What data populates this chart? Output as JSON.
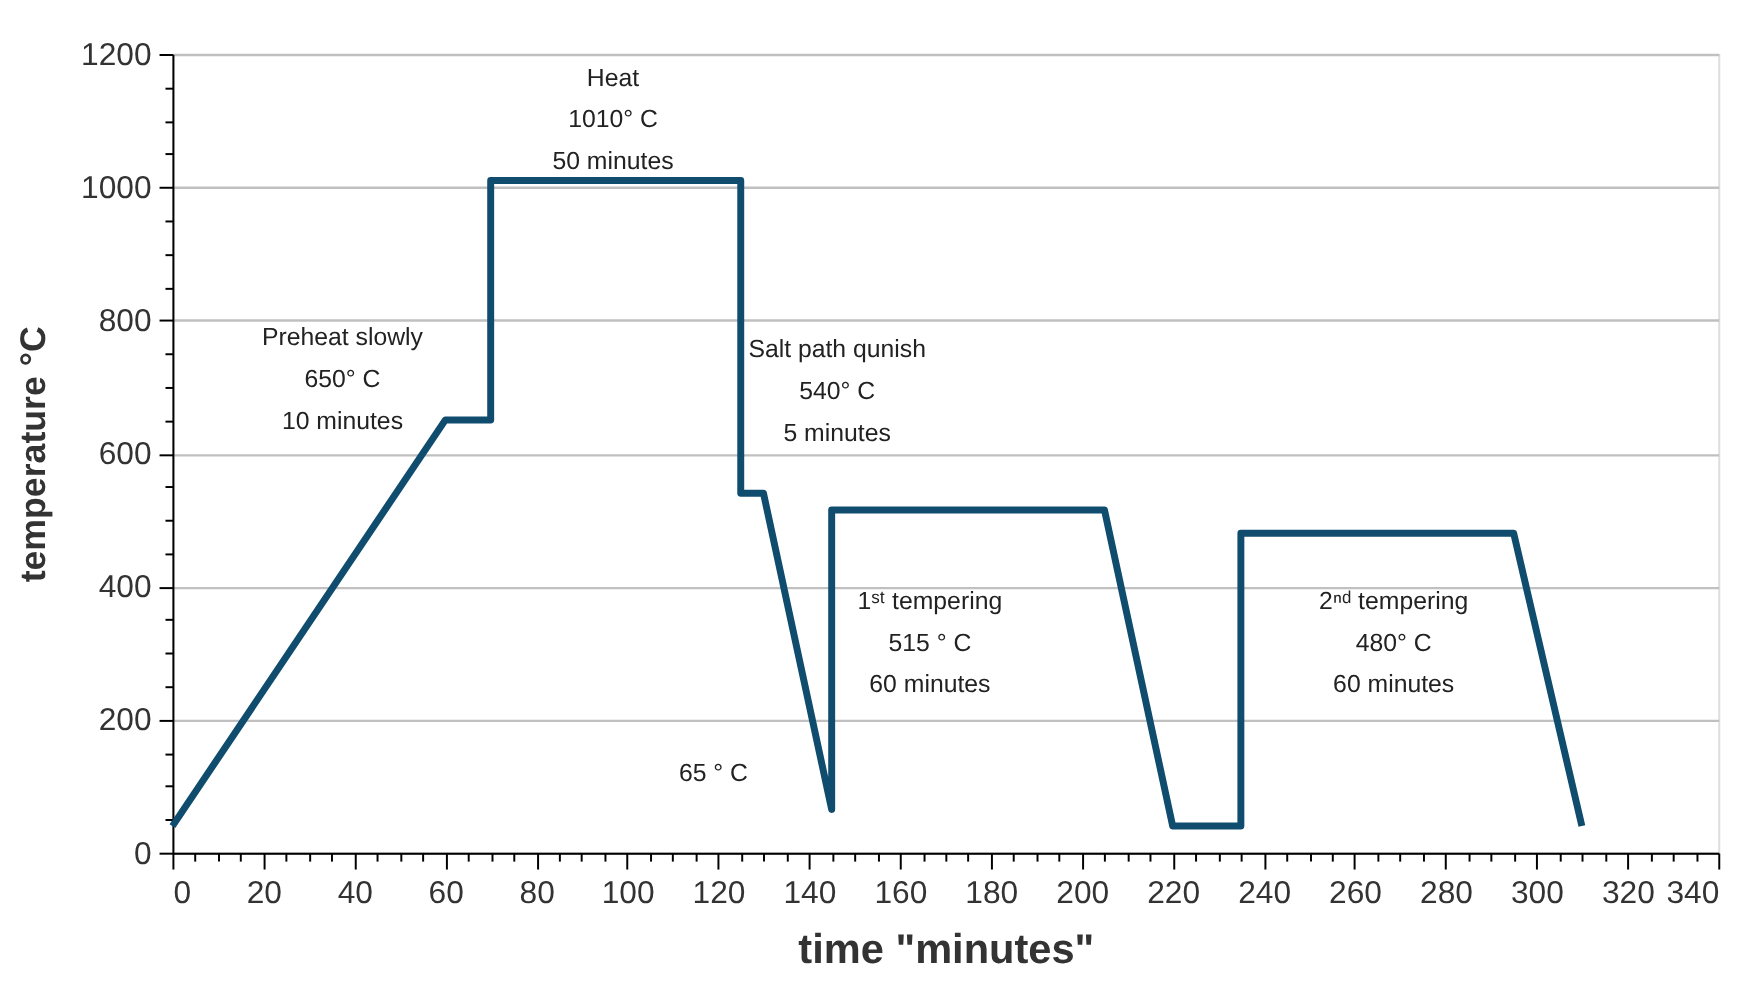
{
  "chart_data": {
    "type": "line",
    "xlabel": "time \"minutes\"",
    "ylabel": "temperature °C",
    "x": [
      0,
      60,
      70,
      70,
      125,
      125,
      130,
      145,
      145,
      205,
      220,
      235,
      235,
      295,
      310
    ],
    "series": [
      {
        "color": "#0f4c6e",
        "values": [
          40,
          650,
          650,
          1010,
          1010,
          540,
          540,
          65,
          515,
          515,
          40,
          40,
          480,
          480,
          40
        ]
      }
    ],
    "xlim": [
      0,
      340
    ],
    "xticks": [
      0,
      {
        "value": 5,
        "label": null
      },
      {
        "value": 10,
        "label": null
      },
      {
        "value": 15,
        "label": null
      },
      20,
      {
        "value": 25,
        "label": null
      },
      {
        "value": 30,
        "label": null
      },
      {
        "value": 35,
        "label": null
      },
      40,
      {
        "value": 45,
        "label": null
      },
      {
        "value": 50,
        "label": null
      },
      {
        "value": 55,
        "label": null
      },
      60,
      {
        "value": 65,
        "label": null
      },
      {
        "value": 70,
        "label": null
      },
      {
        "value": 75,
        "label": null
      },
      80,
      {
        "value": 85,
        "label": null
      },
      {
        "value": 90,
        "label": null
      },
      {
        "value": 95,
        "label": null
      },
      100,
      {
        "value": 105,
        "label": null
      },
      {
        "value": 110,
        "label": null
      },
      {
        "value": 115,
        "label": null
      },
      120,
      {
        "value": 125,
        "label": null
      },
      {
        "value": 130,
        "label": null
      },
      {
        "value": 135,
        "label": null
      },
      140,
      {
        "value": 145,
        "label": null
      },
      {
        "value": 150,
        "label": null
      },
      {
        "value": 155,
        "label": null
      },
      160,
      {
        "value": 165,
        "label": null
      },
      {
        "value": 170,
        "label": null
      },
      {
        "value": 175,
        "label": null
      },
      180,
      {
        "value": 185,
        "label": null
      },
      {
        "value": 190,
        "label": null
      },
      {
        "value": 195,
        "label": null
      },
      200,
      {
        "value": 205,
        "label": null
      },
      {
        "value": 210,
        "label": null
      },
      {
        "value": 215,
        "label": null
      },
      220,
      {
        "value": 225,
        "label": null
      },
      {
        "value": 230,
        "label": null
      },
      {
        "value": 235,
        "label": null
      },
      240,
      {
        "value": 245,
        "label": null
      },
      {
        "value": 250,
        "label": null
      },
      {
        "value": 255,
        "label": null
      },
      260,
      {
        "value": 265,
        "label": null
      },
      {
        "value": 270,
        "label": null
      },
      {
        "value": 275,
        "label": null
      },
      280,
      {
        "value": 285,
        "label": null
      },
      {
        "value": 290,
        "label": null
      },
      {
        "value": 295,
        "label": null
      },
      300,
      {
        "value": 305,
        "label": null
      },
      {
        "value": 310,
        "label": null
      },
      {
        "value": 315,
        "label": null
      },
      320,
      {
        "value": 325,
        "label": null
      },
      {
        "value": 330,
        "label": null
      },
      {
        "value": 335,
        "label": null
      },
      340
    ],
    "ylim": [
      0,
      1200
    ],
    "yticks": [
      0,
      {
        "value": 50,
        "label": null
      },
      {
        "value": 100,
        "label": null
      },
      {
        "value": 150,
        "label": null
      },
      200,
      {
        "value": 250,
        "label": null
      },
      {
        "value": 300,
        "label": null
      },
      {
        "value": 350,
        "label": null
      },
      400,
      {
        "value": 450,
        "label": null
      },
      {
        "value": 500,
        "label": null
      },
      {
        "value": 550,
        "label": null
      },
      600,
      {
        "value": 650,
        "label": null
      },
      {
        "value": 700,
        "label": null
      },
      {
        "value": 750,
        "label": null
      },
      800,
      {
        "value": 850,
        "label": null
      },
      {
        "value": 900,
        "label": null
      },
      {
        "value": 950,
        "label": null
      },
      1000,
      {
        "value": 1050,
        "label": null
      },
      {
        "value": 1100,
        "label": null
      },
      {
        "value": 1150,
        "label": null
      },
      1200
    ],
    "grid": "y",
    "marker": "none",
    "line_style": "solid",
    "annotations": [
      "Heat\n1010° C\n50 minutes",
      "Preheat slowly\n650° C\n10 minutes",
      "Salt path qunish\n540° C\n5 minutes",
      "65 ° C",
      "1ˢᵗ tempering\n515 ° C\n60 minutes",
      "2ⁿᵈ tempering\n480° C\n60 minutes"
    ]
  }
}
